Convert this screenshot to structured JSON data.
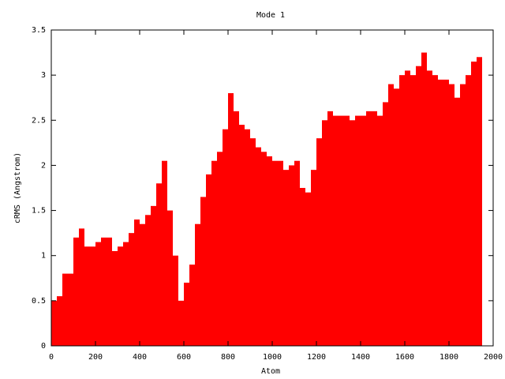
{
  "chart_data": {
    "type": "histogram",
    "title": "Mode 1",
    "x_label": "Atom",
    "y_label": "cRMS (Angstrom)",
    "color": "#ff0000",
    "grid": false,
    "bins": [
      0,
      25,
      50,
      75,
      100,
      125,
      150,
      175,
      200,
      225,
      250,
      275,
      300,
      325,
      350,
      375,
      400,
      425,
      450,
      475,
      500,
      525,
      550,
      575,
      600,
      625,
      650,
      675,
      700,
      725,
      750,
      775,
      800,
      825,
      850,
      875,
      900,
      925,
      950,
      975,
      1000,
      1025,
      1050,
      1075,
      1100,
      1125,
      1150,
      1175,
      1200,
      1225,
      1250,
      1275,
      1300,
      1325,
      1350,
      1375,
      1400,
      1425,
      1450,
      1475,
      1500,
      1525,
      1550,
      1575,
      1600,
      1625,
      1650,
      1675,
      1700,
      1725,
      1750,
      1775,
      1800,
      1825,
      1850,
      1875,
      1900,
      1925,
      1950
    ],
    "values": [
      0.5,
      0.55,
      0.8,
      0.8,
      1.2,
      1.3,
      1.1,
      1.1,
      1.15,
      1.2,
      1.2,
      1.05,
      1.1,
      1.15,
      1.25,
      1.4,
      1.35,
      1.45,
      1.55,
      1.8,
      2.05,
      1.5,
      1.0,
      0.5,
      0.7,
      0.9,
      1.35,
      1.65,
      1.9,
      2.05,
      2.15,
      2.4,
      2.8,
      2.6,
      2.45,
      2.4,
      2.3,
      2.2,
      2.15,
      2.1,
      2.05,
      2.05,
      1.95,
      2.0,
      2.05,
      1.75,
      1.7,
      1.95,
      2.3,
      2.5,
      2.6,
      2.55,
      2.55,
      2.55,
      2.5,
      2.55,
      2.55,
      2.6,
      2.6,
      2.55,
      2.7,
      2.9,
      2.85,
      3.0,
      3.05,
      3.0,
      3.1,
      3.25,
      3.05,
      3.0,
      2.95,
      2.95,
      2.9,
      2.75,
      2.9,
      3.0,
      3.15,
      3.2
    ],
    "xlim": [
      0,
      2000
    ],
    "xticks": [
      0,
      200,
      400,
      600,
      800,
      1000,
      1200,
      1400,
      1600,
      1800,
      2000
    ],
    "ylim": [
      0,
      3.5
    ],
    "yticks": [
      0,
      0.5,
      1,
      1.5,
      2,
      2.5,
      3,
      3.5
    ]
  }
}
